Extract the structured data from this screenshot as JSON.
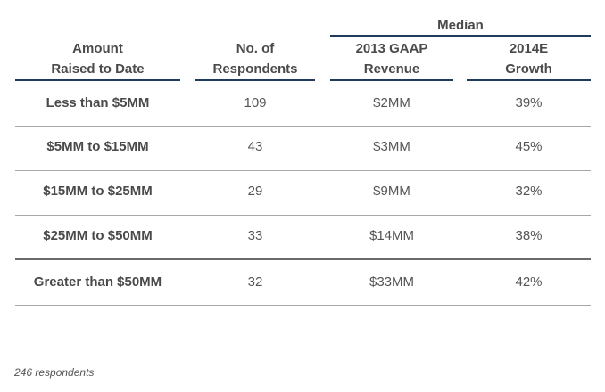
{
  "table": {
    "group_header": "Median",
    "columns": [
      {
        "line1": "Amount",
        "line2": "Raised to Date"
      },
      {
        "line1": "No. of",
        "line2": "Respondents"
      },
      {
        "line1": "2013 GAAP",
        "line2": "Revenue"
      },
      {
        "line1": "2014E",
        "line2": "Growth"
      }
    ],
    "rows": [
      {
        "amount": "Less than $5MM",
        "respondents": "109",
        "revenue": "$2MM",
        "growth": "39%"
      },
      {
        "amount": "$5MM to $15MM",
        "respondents": "43",
        "revenue": "$3MM",
        "growth": "45%"
      },
      {
        "amount": "$15MM to $25MM",
        "respondents": "29",
        "revenue": "$9MM",
        "growth": "32%"
      },
      {
        "amount": "$25MM to $50MM",
        "respondents": "33",
        "revenue": "$14MM",
        "growth": "38%"
      },
      {
        "amount": "Greater than $50MM",
        "respondents": "32",
        "revenue": "$33MM",
        "growth": "42%"
      }
    ]
  },
  "footnote": "246 respondents",
  "colors": {
    "header_rule": "#1f3a5c",
    "row_rule": "#a8a8a8"
  }
}
